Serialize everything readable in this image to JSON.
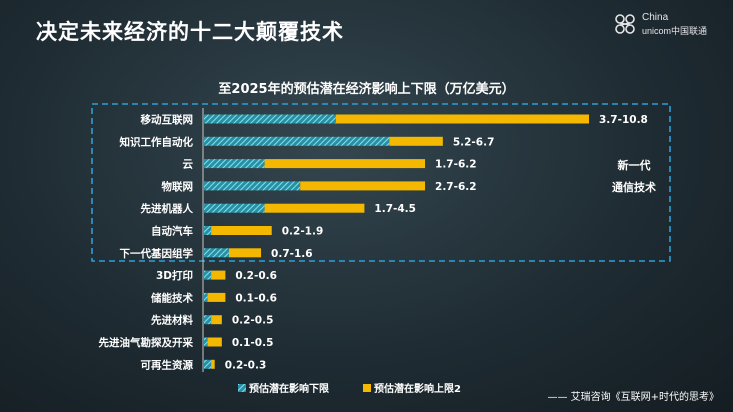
{
  "slide": {
    "title": "决定未来经济的十二大颠覆技术",
    "logo_text_1": "China",
    "logo_text_2": "unicom中国联通",
    "source": "—— 艾瑞咨询《互联网+时代的思考》",
    "highlight_note_1": "新一代",
    "highlight_note_2": "通信技术"
  },
  "colors": {
    "hatch": "#4fc3d6",
    "gold": "#f5b800",
    "highlight_border": "#2e9fd6",
    "text": "#ffffff"
  },
  "chart_data": {
    "type": "bar",
    "orientation": "horizontal",
    "stacked": true,
    "title": "至2025年的预估潜在经济影响上下限（万亿美元）",
    "categories": [
      "移动互联网",
      "知识工作自动化",
      "云",
      "物联网",
      "先进机器人",
      "自动汽车",
      "下一代基因组学",
      "3D打印",
      "储能技术",
      "先进材料",
      "先进油气勘探及开采",
      "可再生资源"
    ],
    "series": [
      {
        "name": "预估潜在影响下限",
        "pattern": "hatched",
        "values": [
          3.7,
          5.2,
          1.7,
          2.7,
          1.7,
          0.2,
          0.7,
          0.2,
          0.1,
          0.2,
          0.1,
          0.2
        ]
      },
      {
        "name": "预估潜在影响上限2",
        "pattern": "solid",
        "values": [
          7.1,
          1.5,
          4.5,
          3.5,
          2.8,
          1.7,
          0.9,
          0.4,
          0.5,
          0.3,
          0.4,
          0.1
        ]
      }
    ],
    "data_labels": [
      "3.7-10.8",
      "5.2-6.7",
      "1.7-6.2",
      "2.7-6.2",
      "1.7-4.5",
      "0.2-1.9",
      "0.7-1.6",
      "0.2-0.6",
      "0.1-0.6",
      "0.2-0.5",
      "0.1-0.5",
      "0.2-0.3"
    ],
    "xlim": [
      0,
      10.8
    ],
    "highlighted_group": [
      "移动互联网",
      "知识工作自动化",
      "云",
      "物联网",
      "先进机器人",
      "自动汽车",
      "下一代基因组学"
    ],
    "legend_position": "bottom-left",
    "grid": false
  }
}
